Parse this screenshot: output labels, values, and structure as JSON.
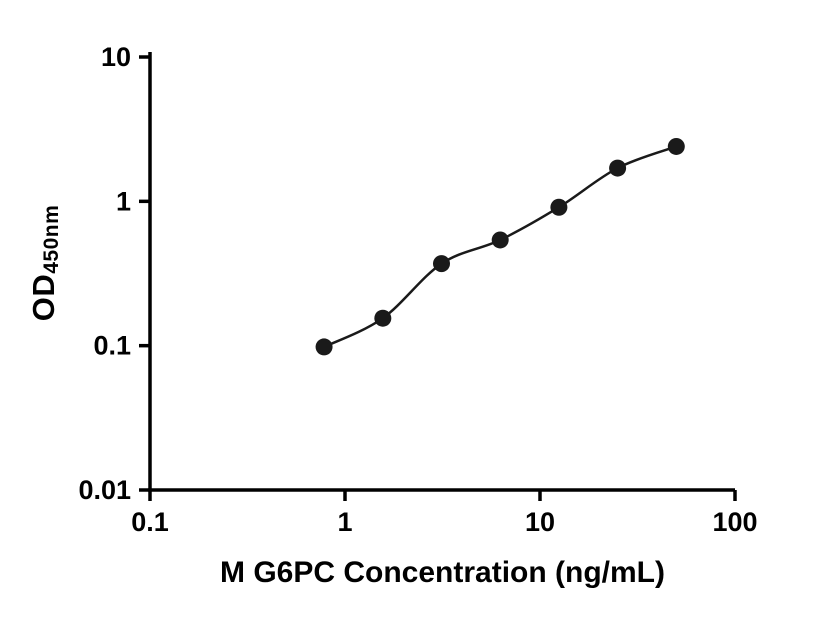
{
  "chart_data": {
    "type": "scatter",
    "title": "",
    "xlabel": "M G6PC Concentration (ng/mL)",
    "ylabel": "OD",
    "ylabel_sub": "450nm",
    "xscale": "log",
    "yscale": "log",
    "xlim": [
      0.1,
      100
    ],
    "ylim": [
      0.01,
      10
    ],
    "x_ticks": [
      0.1,
      1,
      10,
      100
    ],
    "x_tick_labels": [
      "0.1",
      "1",
      "10",
      "100"
    ],
    "y_ticks": [
      0.01,
      0.1,
      1,
      10
    ],
    "y_tick_labels": [
      "0.01",
      "0.1",
      "1",
      "10"
    ],
    "x": [
      0.781,
      1.563,
      3.125,
      6.25,
      12.5,
      25,
      50
    ],
    "y": [
      0.098,
      0.155,
      0.37,
      0.54,
      0.91,
      1.7,
      2.4
    ],
    "grid": false,
    "legend": null,
    "axis_color": "#000000",
    "marker_color": "#1a1a1a",
    "line_color": "#1a1a1a"
  }
}
